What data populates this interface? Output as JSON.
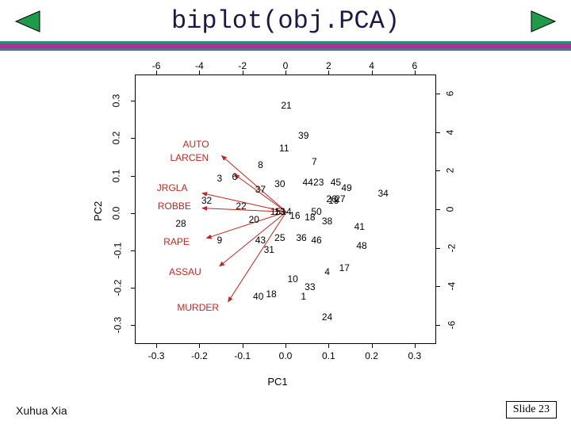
{
  "meta": {
    "title": "biplot(obj.PCA)",
    "author": "Xuhua Xia",
    "slide_label": "Slide 23"
  },
  "nav": {
    "prev_icon_color": "#1e9c4a",
    "next_icon_color": "#1e9c4a",
    "icon_border": "#000000"
  },
  "divider": {
    "teal": "#2a8a7a",
    "magenta": "#a8349a"
  },
  "chart": {
    "type": "biplot",
    "xlabel": "PC1",
    "ylabel": "PC2",
    "primary_xlim": [
      -0.35,
      0.35
    ],
    "primary_ylim": [
      -0.35,
      0.37
    ],
    "secondary_xlim": [
      -7,
      7
    ],
    "secondary_ylim": [
      -7,
      7
    ],
    "bottom_ticks": {
      "pos": [
        -0.3,
        -0.2,
        -0.1,
        0.0,
        0.1,
        0.2,
        0.3
      ],
      "labels": [
        "-0.3",
        "-0.2",
        "-0.1",
        "0.0",
        "0.1",
        "0.2",
        "0.3"
      ]
    },
    "left_ticks": {
      "pos": [
        -0.3,
        -0.2,
        -0.1,
        0.0,
        0.1,
        0.2,
        0.3
      ],
      "labels": [
        "-0.3",
        "-0.2",
        "-0.1",
        "0.0",
        "0.1",
        "0.2",
        "0.3"
      ]
    },
    "top_ticks": {
      "pos": [
        -6,
        -4,
        -2,
        0,
        2,
        4,
        6
      ],
      "labels": [
        "-6",
        "-4",
        "-2",
        "0",
        "2",
        "4",
        "6"
      ]
    },
    "right_ticks": {
      "pos": [
        -6,
        -4,
        -2,
        0,
        2,
        4,
        6
      ],
      "labels": [
        "-6",
        "-4",
        "-2",
        "0",
        "2",
        "4",
        "6"
      ]
    },
    "frame_color": "#000000",
    "background_color": "#ffffff",
    "obs_color": "#000000",
    "var_color": "#c7241c",
    "arrow_color": "#c7241c",
    "arrow_width": 1,
    "label_fontsize": 13,
    "tick_fontsize": 12,
    "obs_fontsize": 12,
    "observations": [
      {
        "n": "1",
        "x": 0.04,
        "y": -0.22
      },
      {
        "n": "3",
        "x": -0.155,
        "y": 0.095
      },
      {
        "n": "4",
        "x": 0.095,
        "y": -0.155
      },
      {
        "n": "6",
        "x": -0.12,
        "y": 0.1
      },
      {
        "n": "7",
        "x": 0.065,
        "y": 0.14
      },
      {
        "n": "8",
        "x": -0.06,
        "y": 0.13
      },
      {
        "n": "9",
        "x": -0.155,
        "y": -0.07
      },
      {
        "n": "10",
        "x": 0.015,
        "y": -0.175
      },
      {
        "n": "11",
        "x": -0.005,
        "y": 0.175
      },
      {
        "n": "13",
        "x": -0.015,
        "y": 0.005
      },
      {
        "n": "14",
        "x": 0.0,
        "y": 0.005
      },
      {
        "n": "15",
        "x": -0.025,
        "y": 0.005
      },
      {
        "n": "16",
        "x": 0.02,
        "y": -0.005
      },
      {
        "n": "17",
        "x": 0.135,
        "y": -0.145
      },
      {
        "n": "18",
        "x": 0.055,
        "y": -0.01
      },
      {
        "n": "19",
        "x": 0.11,
        "y": 0.035
      },
      {
        "n": "20",
        "x": -0.075,
        "y": -0.015
      },
      {
        "n": "21",
        "x": 0.0,
        "y": 0.29
      },
      {
        "n": "22",
        "x": -0.105,
        "y": 0.02
      },
      {
        "n": "23",
        "x": 0.075,
        "y": 0.085
      },
      {
        "n": "24",
        "x": 0.095,
        "y": -0.275
      },
      {
        "n": "25",
        "x": -0.015,
        "y": -0.065
      },
      {
        "n": "26",
        "x": 0.105,
        "y": 0.04
      },
      {
        "n": "27",
        "x": 0.125,
        "y": 0.04
      },
      {
        "n": "28",
        "x": -0.245,
        "y": -0.025
      },
      {
        "n": "30",
        "x": -0.015,
        "y": 0.08
      },
      {
        "n": "31",
        "x": -0.04,
        "y": -0.095
      },
      {
        "n": "32",
        "x": -0.185,
        "y": 0.035
      },
      {
        "n": "33",
        "x": 0.055,
        "y": -0.195
      },
      {
        "n": "34",
        "x": 0.225,
        "y": 0.055
      },
      {
        "n": "36",
        "x": 0.035,
        "y": -0.065
      },
      {
        "n": "37",
        "x": -0.06,
        "y": 0.065
      },
      {
        "n": "38",
        "x": 0.095,
        "y": -0.02
      },
      {
        "n": "39",
        "x": 0.04,
        "y": 0.21
      },
      {
        "n": "40",
        "x": -0.065,
        "y": -0.22
      },
      {
        "n": "18b",
        "x": -0.035,
        "y": -0.215
      },
      {
        "n": "41",
        "x": 0.17,
        "y": -0.035
      },
      {
        "n": "43",
        "x": -0.06,
        "y": -0.07
      },
      {
        "n": "44",
        "x": 0.05,
        "y": 0.085
      },
      {
        "n": "45",
        "x": 0.115,
        "y": 0.085
      },
      {
        "n": "46",
        "x": 0.07,
        "y": -0.07
      },
      {
        "n": "48",
        "x": 0.175,
        "y": -0.085
      },
      {
        "n": "49",
        "x": 0.14,
        "y": 0.07
      },
      {
        "n": "50",
        "x": 0.07,
        "y": 0.005
      }
    ],
    "variables": [
      {
        "name": "AUTO",
        "lx": -0.21,
        "ly": 0.185,
        "ax": -0.15,
        "ay": 0.155
      },
      {
        "name": "LARCEN",
        "lx": -0.225,
        "ly": 0.15,
        "ax": -0.12,
        "ay": 0.105
      },
      {
        "name": "JRGLA",
        "lx": -0.265,
        "ly": 0.07,
        "ax": -0.195,
        "ay": 0.055
      },
      {
        "name": "ROBBE",
        "lx": -0.26,
        "ly": 0.02,
        "ax": -0.195,
        "ay": 0.015
      },
      {
        "name": "RAPE",
        "lx": -0.255,
        "ly": -0.075,
        "ax": -0.185,
        "ay": -0.065
      },
      {
        "name": "ASSAU",
        "lx": -0.235,
        "ly": -0.155,
        "ax": -0.155,
        "ay": -0.14
      },
      {
        "name": "MURDER",
        "lx": -0.205,
        "ly": -0.25,
        "ax": -0.135,
        "ay": -0.235
      }
    ]
  }
}
